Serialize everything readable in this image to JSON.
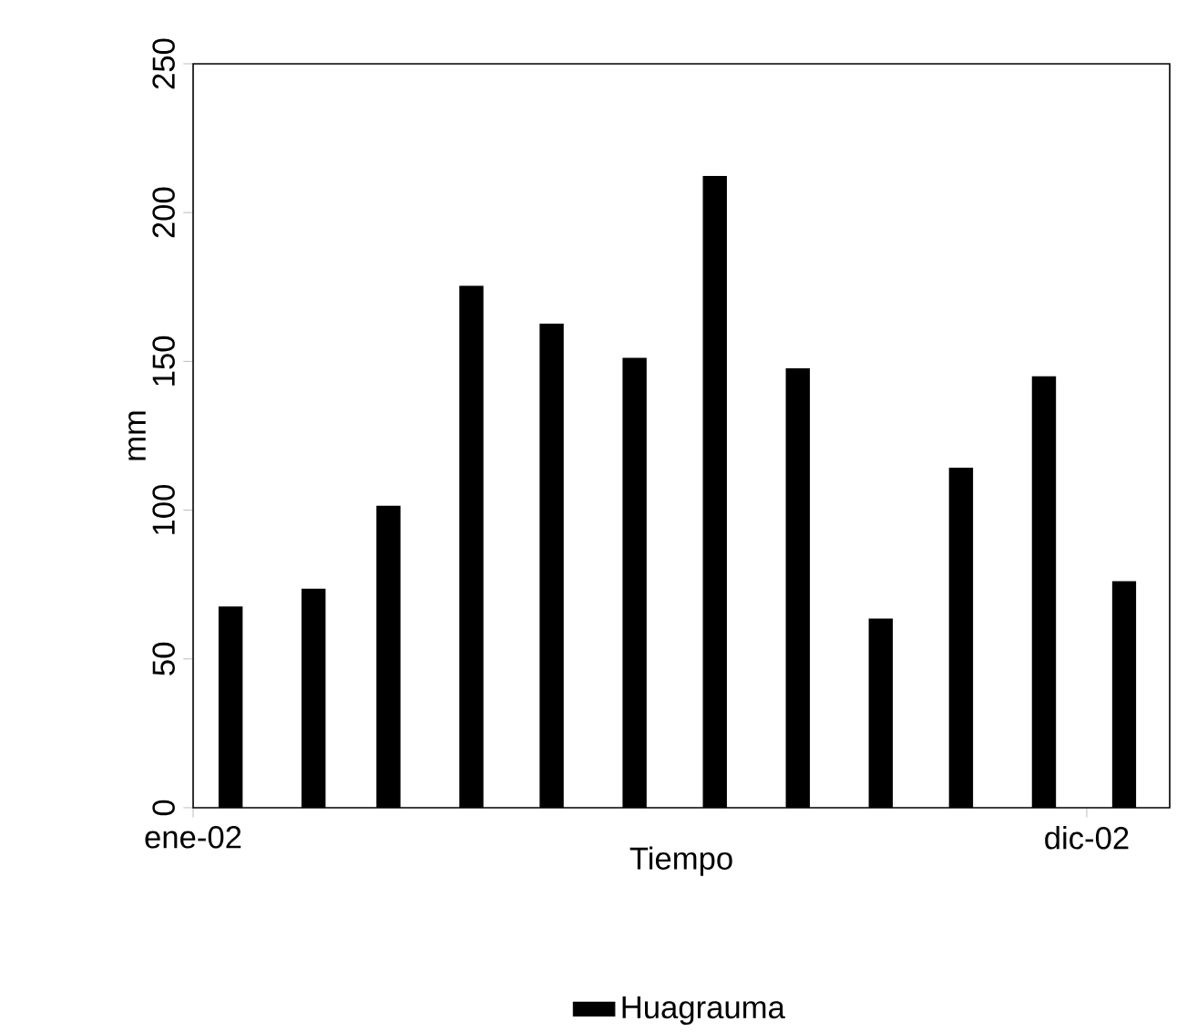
{
  "chart_data": {
    "type": "bar",
    "xlabel": "Tiempo",
    "ylabel": "mm",
    "x": [
      "2002-01-15",
      "2002-02-15",
      "2002-03-15",
      "2002-04-15",
      "2002-05-15",
      "2002-06-15",
      "2002-07-15",
      "2002-08-15",
      "2002-09-15",
      "2002-10-15",
      "2002-11-15",
      "2002-12-15"
    ],
    "series": [
      {
        "name": "Huagrauma",
        "color": "#000000",
        "values": [
          67.6,
          73.6,
          101.5,
          175.4,
          162.7,
          151.2,
          212.3,
          147.7,
          63.6,
          114.3,
          145.0,
          76.1
        ]
      }
    ],
    "xlim": [
      "2002-01-01",
      "2003-01-01"
    ],
    "xticks": [
      {
        "value": "2002-01-01",
        "label": "ene-02"
      },
      {
        "value": "2002-12-01",
        "label": "dic-02"
      }
    ],
    "ylim": [
      0,
      250
    ],
    "yticks": [
      0,
      50,
      100,
      150,
      200,
      250
    ],
    "grid": false,
    "legend": "bottom"
  }
}
